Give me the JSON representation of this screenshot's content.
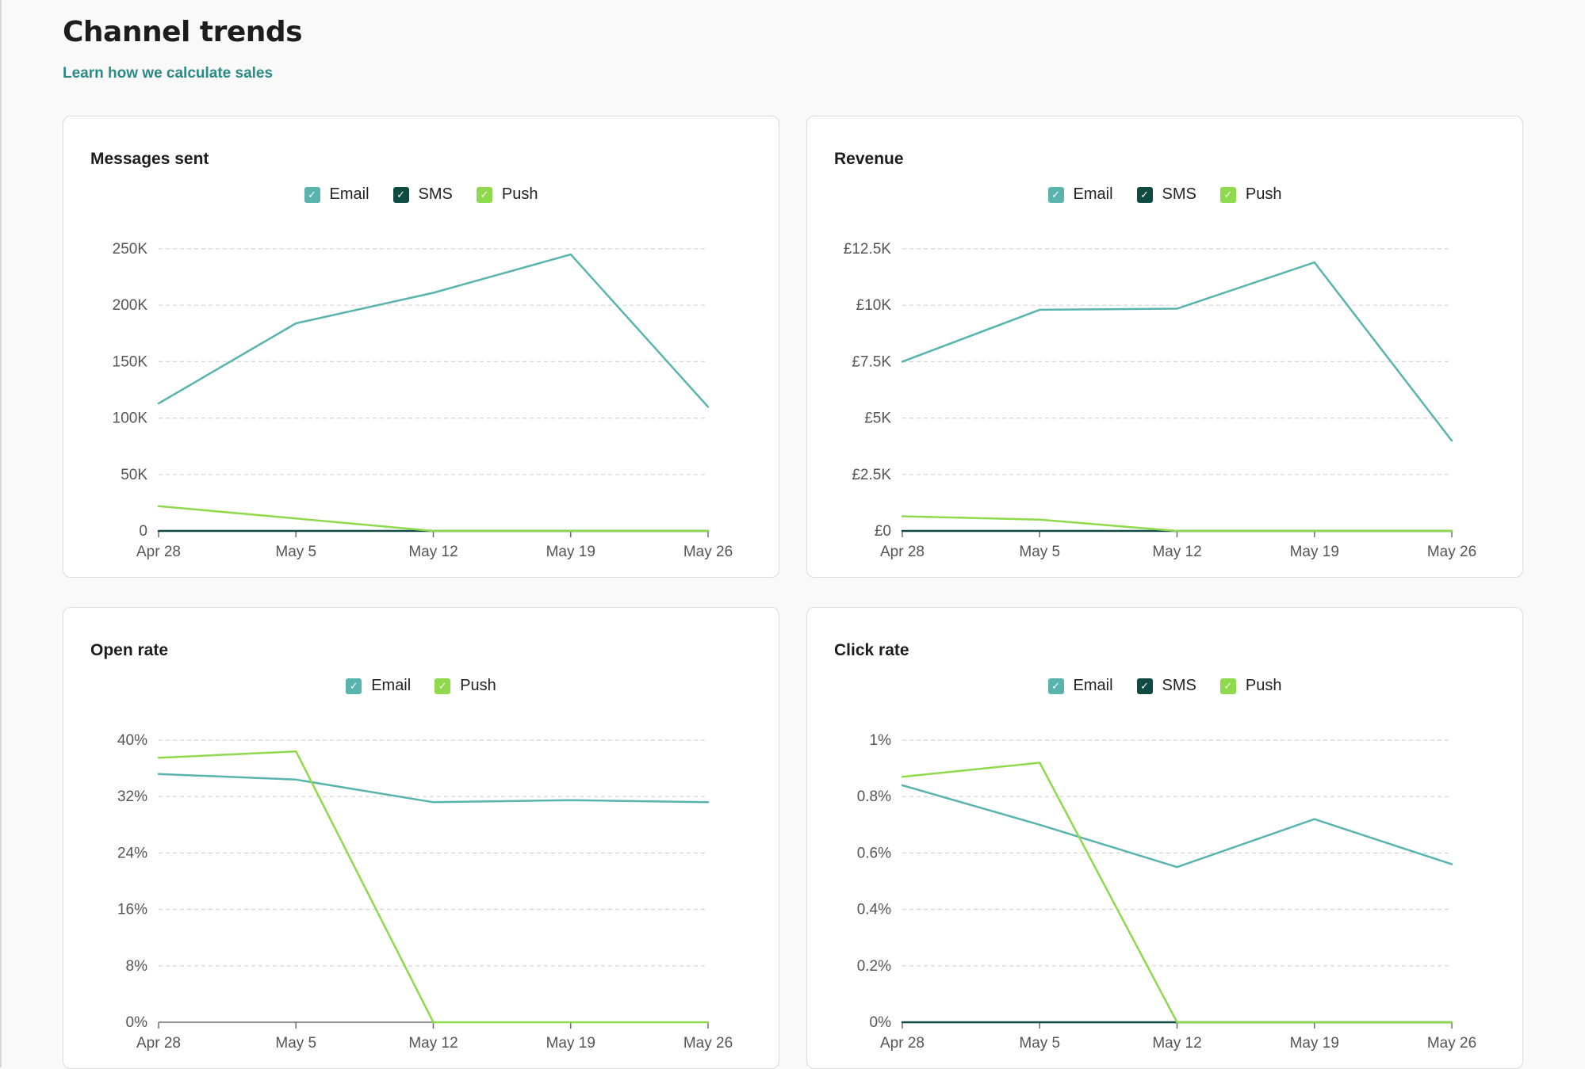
{
  "page": {
    "title": "Channel trends",
    "link_label": "Learn how we calculate sales"
  },
  "colors": {
    "Email": "#58b4ad",
    "SMS": "#0f4a43",
    "Push": "#8fd94c"
  },
  "chart_data": [
    {
      "type": "line",
      "title": "Messages sent",
      "x": [
        "Apr 28",
        "May 5",
        "May 12",
        "May 19",
        "May 26"
      ],
      "ylim": [
        0,
        250000
      ],
      "yticks": [
        0,
        50000,
        100000,
        150000,
        200000,
        250000
      ],
      "ytick_labels": [
        "0",
        "50K",
        "100K",
        "150K",
        "200K",
        "250K"
      ],
      "legend": [
        "Email",
        "SMS",
        "Push"
      ],
      "series": [
        {
          "name": "Email",
          "values": [
            113000,
            184000,
            211000,
            245000,
            110000
          ]
        },
        {
          "name": "SMS",
          "values": [
            0,
            0,
            0,
            0,
            0
          ]
        },
        {
          "name": "Push",
          "values": [
            22000,
            11000,
            0,
            0,
            0
          ]
        }
      ]
    },
    {
      "type": "line",
      "title": "Revenue",
      "x": [
        "Apr 28",
        "May 5",
        "May 12",
        "May 19",
        "May 26"
      ],
      "ylim": [
        0,
        12500
      ],
      "yticks": [
        0,
        2500,
        5000,
        7500,
        10000,
        12500
      ],
      "ytick_labels": [
        "£0",
        "£2.5K",
        "£5K",
        "£7.5K",
        "£10K",
        "£12.5K"
      ],
      "legend": [
        "Email",
        "SMS",
        "Push"
      ],
      "series": [
        {
          "name": "Email",
          "values": [
            7500,
            9800,
            9850,
            11900,
            4000
          ]
        },
        {
          "name": "SMS",
          "values": [
            0,
            0,
            0,
            0,
            0
          ]
        },
        {
          "name": "Push",
          "values": [
            650,
            500,
            0,
            0,
            0
          ]
        }
      ]
    },
    {
      "type": "line",
      "title": "Open rate",
      "x": [
        "Apr 28",
        "May 5",
        "May 12",
        "May 19",
        "May 26"
      ],
      "ylim": [
        0,
        40
      ],
      "yticks": [
        0,
        8,
        16,
        24,
        32,
        40
      ],
      "ytick_labels": [
        "0%",
        "8%",
        "16%",
        "24%",
        "32%",
        "40%"
      ],
      "legend": [
        "Email",
        "Push"
      ],
      "series": [
        {
          "name": "Email",
          "values": [
            35.2,
            34.4,
            31.2,
            31.5,
            31.2
          ]
        },
        {
          "name": "Push",
          "values": [
            37.5,
            38.4,
            0,
            0,
            0
          ]
        }
      ]
    },
    {
      "type": "line",
      "title": "Click rate",
      "x": [
        "Apr 28",
        "May 5",
        "May 12",
        "May 19",
        "May 26"
      ],
      "ylim": [
        0,
        1
      ],
      "yticks": [
        0,
        0.2,
        0.4,
        0.6,
        0.8,
        1
      ],
      "ytick_labels": [
        "0%",
        "0.2%",
        "0.4%",
        "0.6%",
        "0.8%",
        "1%"
      ],
      "legend": [
        "Email",
        "SMS",
        "Push"
      ],
      "series": [
        {
          "name": "Email",
          "values": [
            0.84,
            0.7,
            0.55,
            0.72,
            0.56
          ]
        },
        {
          "name": "SMS",
          "values": [
            0,
            0,
            0,
            0,
            0
          ]
        },
        {
          "name": "Push",
          "values": [
            0.87,
            0.92,
            0,
            0,
            0
          ]
        }
      ]
    }
  ]
}
